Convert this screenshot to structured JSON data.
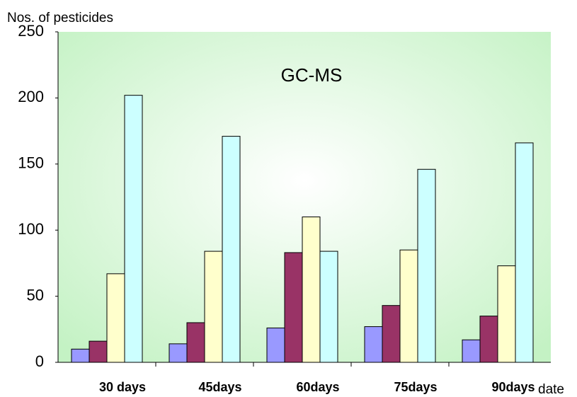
{
  "chart_data": {
    "type": "bar",
    "title": "GC-MS",
    "y_label": "Nos. of pesticides",
    "x_label": "date",
    "categories": [
      "30 days",
      "45days",
      "60days",
      "75days",
      "90days"
    ],
    "series": [
      {
        "color": "#9999ff",
        "values": [
          10,
          14,
          26,
          27,
          17
        ]
      },
      {
        "color": "#993366",
        "values": [
          16,
          30,
          83,
          43,
          35
        ]
      },
      {
        "color": "#ffffcc",
        "values": [
          67,
          84,
          110,
          85,
          73
        ]
      },
      {
        "color": "#ccffff",
        "values": [
          202,
          171,
          84,
          146,
          166
        ]
      }
    ],
    "ylim": [
      0,
      250
    ],
    "yticks": [
      0,
      50,
      100,
      150,
      200,
      250
    ]
  }
}
